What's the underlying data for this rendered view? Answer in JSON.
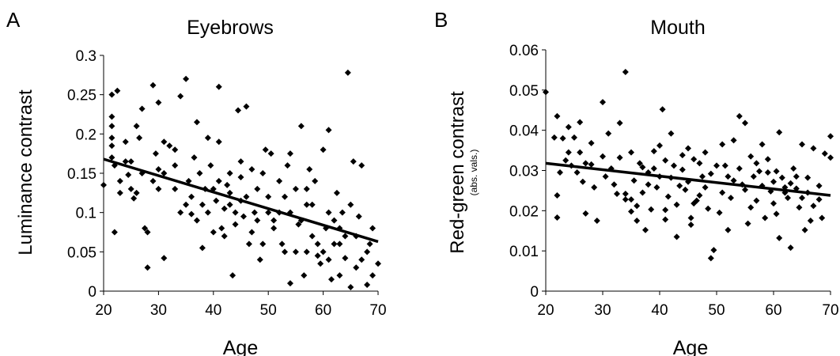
{
  "chart_data": [
    {
      "type": "scatter",
      "panel": "A",
      "title": "Eyebrows",
      "xlabel": "Age",
      "ylabel": "Luminance contrast",
      "ylabel_sub": "",
      "xlim": [
        20,
        70
      ],
      "ylim": [
        0,
        0.3
      ],
      "xticks": [
        "20",
        "30",
        "40",
        "50",
        "60",
        "70"
      ],
      "yticks": [
        "0",
        "0.05",
        "0.1",
        "0.15",
        "0.2",
        "0.25",
        "0.3"
      ],
      "grid": false,
      "legend": "none",
      "trendline": {
        "x": [
          20,
          70
        ],
        "y": [
          0.168,
          0.063
        ]
      },
      "points": [
        [
          21.5,
          0.25
        ],
        [
          22.5,
          0.255
        ],
        [
          21.5,
          0.222
        ],
        [
          21.5,
          0.21
        ],
        [
          21.5,
          0.195
        ],
        [
          21.5,
          0.185
        ],
        [
          21.5,
          0.17
        ],
        [
          22,
          0.075
        ],
        [
          20,
          0.135
        ],
        [
          23,
          0.125
        ],
        [
          24,
          0.165
        ],
        [
          24.5,
          0.148
        ],
        [
          25,
          0.13
        ],
        [
          25.5,
          0.118
        ],
        [
          26,
          0.21
        ],
        [
          26.5,
          0.195
        ],
        [
          27,
          0.232
        ],
        [
          27.5,
          0.08
        ],
        [
          28,
          0.03
        ],
        [
          28,
          0.075
        ],
        [
          29,
          0.262
        ],
        [
          29.5,
          0.175
        ],
        [
          30,
          0.24
        ],
        [
          30,
          0.13
        ],
        [
          31,
          0.15
        ],
        [
          31,
          0.042
        ],
        [
          32,
          0.185
        ],
        [
          33,
          0.16
        ],
        [
          34,
          0.1
        ],
        [
          34,
          0.248
        ],
        [
          35,
          0.27
        ],
        [
          35.5,
          0.14
        ],
        [
          36,
          0.12
        ],
        [
          36,
          0.098
        ],
        [
          37,
          0.215
        ],
        [
          37.5,
          0.15
        ],
        [
          38,
          0.11
        ],
        [
          38,
          0.055
        ],
        [
          39,
          0.195
        ],
        [
          39.5,
          0.16
        ],
        [
          40,
          0.075
        ],
        [
          40,
          0.13
        ],
        [
          41,
          0.26
        ],
        [
          41,
          0.19
        ],
        [
          41.5,
          0.08
        ],
        [
          42,
          0.105
        ],
        [
          42,
          0.07
        ],
        [
          43,
          0.15
        ],
        [
          43,
          0.11
        ],
        [
          43.5,
          0.02
        ],
        [
          44,
          0.085
        ],
        [
          44.5,
          0.23
        ],
        [
          45,
          0.165
        ],
        [
          45,
          0.115
        ],
        [
          45.5,
          0.095
        ],
        [
          46,
          0.235
        ],
        [
          46.5,
          0.06
        ],
        [
          47,
          0.155
        ],
        [
          47.5,
          0.1
        ],
        [
          48,
          0.13
        ],
        [
          48.5,
          0.04
        ],
        [
          49,
          0.06
        ],
        [
          49.5,
          0.18
        ],
        [
          50,
          0.1
        ],
        [
          50.5,
          0.175
        ],
        [
          51,
          0.08
        ],
        [
          52,
          0.14
        ],
        [
          52.5,
          0.06
        ],
        [
          53,
          0.05
        ],
        [
          53.5,
          0.16
        ],
        [
          54,
          0.175
        ],
        [
          54,
          0.01
        ],
        [
          55,
          0.13
        ],
        [
          55.5,
          0.085
        ],
        [
          56,
          0.21
        ],
        [
          56.5,
          0.02
        ],
        [
          57,
          0.05
        ],
        [
          57.5,
          0.155
        ],
        [
          58,
          0.11
        ],
        [
          58.5,
          0.14
        ],
        [
          59,
          0.06
        ],
        [
          59.5,
          0.035
        ],
        [
          60,
          0.18
        ],
        [
          60.5,
          0.08
        ],
        [
          61,
          0.205
        ],
        [
          61.5,
          0.015
        ],
        [
          62,
          0.06
        ],
        [
          62.5,
          0.125
        ],
        [
          63,
          0.02
        ],
        [
          63.5,
          0.1
        ],
        [
          64,
          0.042
        ],
        [
          64.5,
          0.278
        ],
        [
          65,
          0.005
        ],
        [
          65.5,
          0.165
        ],
        [
          66,
          0.03
        ],
        [
          66.5,
          0.095
        ],
        [
          67,
          0.16
        ],
        [
          68,
          0.008
        ],
        [
          68.5,
          0.06
        ],
        [
          69,
          0.08
        ],
        [
          70,
          0.035
        ],
        [
          22,
          0.16
        ],
        [
          23,
          0.14
        ],
        [
          25,
          0.165
        ],
        [
          27,
          0.15
        ],
        [
          29,
          0.14
        ],
        [
          31,
          0.19
        ],
        [
          33,
          0.13
        ],
        [
          35,
          0.11
        ],
        [
          36.5,
          0.17
        ],
        [
          38.5,
          0.13
        ],
        [
          40.5,
          0.115
        ],
        [
          42.5,
          0.135
        ],
        [
          44,
          0.1
        ],
        [
          46,
          0.12
        ],
        [
          48,
          0.09
        ],
        [
          50,
          0.12
        ],
        [
          52,
          0.1
        ],
        [
          54,
          0.1
        ],
        [
          56,
          0.09
        ],
        [
          58,
          0.07
        ],
        [
          60,
          0.05
        ],
        [
          62,
          0.09
        ],
        [
          64,
          0.07
        ],
        [
          66,
          0.07
        ],
        [
          68,
          0.05
        ],
        [
          37,
          0.09
        ],
        [
          39,
          0.1
        ],
        [
          41,
          0.14
        ],
        [
          43,
          0.125
        ],
        [
          47,
          0.075
        ],
        [
          51,
          0.09
        ],
        [
          55,
          0.05
        ],
        [
          59,
          0.045
        ],
        [
          63,
          0.06
        ],
        [
          33,
          0.18
        ],
        [
          30,
          0.155
        ],
        [
          26,
          0.125
        ],
        [
          24,
          0.19
        ],
        [
          45,
          0.145
        ],
        [
          49,
          0.15
        ],
        [
          53,
          0.12
        ],
        [
          57,
          0.11
        ],
        [
          61,
          0.1
        ],
        [
          65,
          0.11
        ],
        [
          67,
          0.04
        ],
        [
          69,
          0.02
        ],
        [
          57,
          0.13
        ],
        [
          61,
          0.04
        ],
        [
          63,
          0.08
        ]
      ]
    },
    {
      "type": "scatter",
      "panel": "B",
      "title": "Mouth",
      "xlabel": "Age",
      "ylabel": "Red-green contrast",
      "ylabel_sub": "(abs. vals.)",
      "xlim": [
        20,
        70
      ],
      "ylim": [
        0,
        0.06
      ],
      "xticks": [
        "20",
        "30",
        "40",
        "50",
        "60",
        "70"
      ],
      "yticks": [
        "0",
        "0.01",
        "0.02",
        "0.03",
        "0.04",
        "0.05",
        "0.06"
      ],
      "grid": false,
      "legend": "none",
      "trendline": {
        "x": [
          20,
          70
        ],
        "y": [
          0.0318,
          0.0238
        ]
      },
      "points": [
        [
          20,
          0.0495
        ],
        [
          21.5,
          0.0382
        ],
        [
          22,
          0.0435
        ],
        [
          22,
          0.0238
        ],
        [
          22,
          0.0183
        ],
        [
          23,
          0.038
        ],
        [
          23.5,
          0.0325
        ],
        [
          24,
          0.0408
        ],
        [
          24.5,
          0.0312
        ],
        [
          25,
          0.0382
        ],
        [
          25.5,
          0.0295
        ],
        [
          26,
          0.042
        ],
        [
          26,
          0.0345
        ],
        [
          27,
          0.0318
        ],
        [
          27,
          0.0193
        ],
        [
          28,
          0.0368
        ],
        [
          28.5,
          0.0258
        ],
        [
          29,
          0.0175
        ],
        [
          30,
          0.047
        ],
        [
          30,
          0.0335
        ],
        [
          31,
          0.0392
        ],
        [
          31.5,
          0.0305
        ],
        [
          32,
          0.0265
        ],
        [
          33,
          0.0418
        ],
        [
          34,
          0.0545
        ],
        [
          34,
          0.0242
        ],
        [
          35,
          0.0345
        ],
        [
          35,
          0.0228
        ],
        [
          36,
          0.0212
        ],
        [
          36,
          0.0175
        ],
        [
          37,
          0.0308
        ],
        [
          37.5,
          0.0152
        ],
        [
          38,
          0.0295
        ],
        [
          38.5,
          0.0203
        ],
        [
          39,
          0.0348
        ],
        [
          39.5,
          0.0258
        ],
        [
          40,
          0.0362
        ],
        [
          40.5,
          0.0452
        ],
        [
          41,
          0.0325
        ],
        [
          41,
          0.0178
        ],
        [
          42,
          0.0282
        ],
        [
          42,
          0.0392
        ],
        [
          43,
          0.0215
        ],
        [
          43,
          0.0135
        ],
        [
          44,
          0.0302
        ],
        [
          44.5,
          0.0252
        ],
        [
          45,
          0.0355
        ],
        [
          45.5,
          0.0182
        ],
        [
          46,
          0.0328
        ],
        [
          47,
          0.0238
        ],
        [
          47.5,
          0.0285
        ],
        [
          48,
          0.0345
        ],
        [
          48.5,
          0.0205
        ],
        [
          49,
          0.0082
        ],
        [
          49.5,
          0.0102
        ],
        [
          50,
          0.0312
        ],
        [
          50.5,
          0.0195
        ],
        [
          51,
          0.0365
        ],
        [
          52,
          0.0285
        ],
        [
          52.5,
          0.0232
        ],
        [
          53,
          0.0375
        ],
        [
          54,
          0.0435
        ],
        [
          54.5,
          0.0265
        ],
        [
          55,
          0.0418
        ],
        [
          55.5,
          0.0168
        ],
        [
          56,
          0.0335
        ],
        [
          57,
          0.0225
        ],
        [
          57.5,
          0.0298
        ],
        [
          58,
          0.0365
        ],
        [
          58.5,
          0.0182
        ],
        [
          59,
          0.0328
        ],
        [
          59.5,
          0.0248
        ],
        [
          60,
          0.0218
        ],
        [
          60.5,
          0.0298
        ],
        [
          61,
          0.0395
        ],
        [
          61,
          0.0132
        ],
        [
          62,
          0.0258
        ],
        [
          62.5,
          0.0232
        ],
        [
          63,
          0.0108
        ],
        [
          63.5,
          0.0305
        ],
        [
          64,
          0.0285
        ],
        [
          64.5,
          0.0208
        ],
        [
          65,
          0.0365
        ],
        [
          65.5,
          0.0152
        ],
        [
          66,
          0.0282
        ],
        [
          66.5,
          0.0175
        ],
        [
          67,
          0.0355
        ],
        [
          68,
          0.0262
        ],
        [
          68.5,
          0.0182
        ],
        [
          69,
          0.0342
        ],
        [
          70,
          0.0385
        ],
        [
          70,
          0.0332
        ],
        [
          22.5,
          0.0295
        ],
        [
          24,
          0.0345
        ],
        [
          26.5,
          0.0272
        ],
        [
          28,
          0.0315
        ],
        [
          30.5,
          0.0285
        ],
        [
          32.5,
          0.0242
        ],
        [
          35.5,
          0.0275
        ],
        [
          37,
          0.0245
        ],
        [
          38,
          0.0265
        ],
        [
          40,
          0.0285
        ],
        [
          41.5,
          0.0235
        ],
        [
          43.5,
          0.0262
        ],
        [
          45,
          0.0272
        ],
        [
          46.5,
          0.0225
        ],
        [
          48,
          0.0258
        ],
        [
          49,
          0.0292
        ],
        [
          51,
          0.0245
        ],
        [
          53,
          0.0275
        ],
        [
          55,
          0.0252
        ],
        [
          56.5,
          0.0285
        ],
        [
          58,
          0.0262
        ],
        [
          60,
          0.0272
        ],
        [
          62,
          0.0245
        ],
        [
          64,
          0.0255
        ],
        [
          66,
          0.0245
        ],
        [
          68,
          0.0228
        ],
        [
          33,
          0.0332
        ],
        [
          36.5,
          0.0318
        ],
        [
          39,
          0.0305
        ],
        [
          42.5,
          0.0312
        ],
        [
          44,
          0.0338
        ],
        [
          47,
          0.0318
        ],
        [
          51.5,
          0.0312
        ],
        [
          54,
          0.0305
        ],
        [
          57,
          0.0318
        ],
        [
          59,
          0.0295
        ],
        [
          61.5,
          0.0282
        ],
        [
          63,
          0.0268
        ],
        [
          65,
          0.0232
        ],
        [
          67,
          0.0212
        ],
        [
          35,
          0.0198
        ],
        [
          41,
          0.0202
        ],
        [
          45.5,
          0.0165
        ],
        [
          52,
          0.0152
        ],
        [
          56,
          0.0208
        ],
        [
          60.5,
          0.0192
        ],
        [
          34,
          0.0228
        ],
        [
          46,
          0.0218
        ]
      ]
    }
  ]
}
